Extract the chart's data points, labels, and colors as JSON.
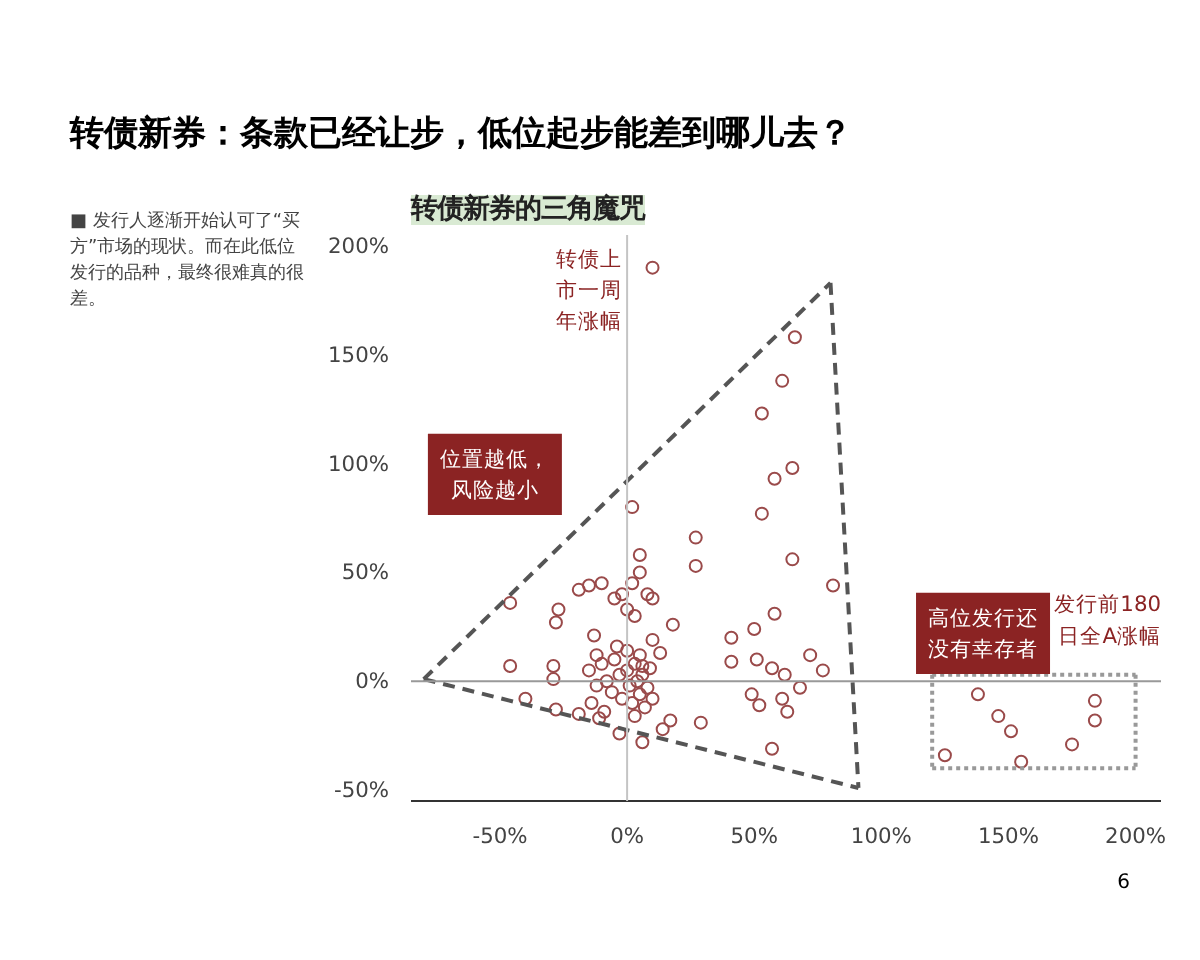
{
  "chart_data": {
    "type": "scatter",
    "title": "转债新券：条款已经让步，低位起步能差到哪儿去？",
    "subtitle": "转债新券的三角魔咒",
    "xlabel": "发行前180日全A涨幅",
    "ylabel": "转债上市一周年涨幅",
    "annotations": [
      "位置越低，风险越小",
      "高位发行还没有幸存者",
      "■ 发行人逐渐开始认可了“买方”市场的现状。而在此低位发行的品种，最终很难真的很差。",
      "6"
    ],
    "marker": "circle",
    "series": [
      {
        "color": "#9a4a4a",
        "x": [
          10,
          66,
          61,
          53,
          65,
          58,
          53,
          27,
          27,
          65,
          81,
          2,
          5,
          -46,
          -19,
          -15,
          -10,
          -27,
          -28,
          -46,
          -29,
          -29,
          -13,
          -12,
          18,
          10,
          13,
          6,
          41,
          41,
          50,
          58,
          51,
          57,
          62,
          77,
          72,
          68,
          49,
          52,
          61,
          63,
          57,
          29,
          17,
          14,
          6,
          -3,
          -19,
          -11,
          -40,
          -28,
          -15,
          -12,
          -10,
          -8,
          -6,
          -5,
          -3,
          -2,
          0,
          1,
          2,
          3,
          4,
          5,
          6,
          7,
          8,
          9,
          10,
          -14,
          -9,
          3,
          0,
          -4,
          5,
          2,
          5,
          8,
          -2,
          0,
          3,
          10,
          -5,
          138,
          146,
          151,
          125,
          155,
          175,
          184,
          184
        ],
        "values": [
          190,
          158,
          138,
          123,
          98,
          93,
          77,
          66,
          53,
          56,
          44,
          80,
          58,
          36,
          42,
          44,
          45,
          33,
          27,
          7,
          7,
          1,
          21,
          12,
          26,
          19,
          13,
          7,
          20,
          9,
          24,
          31,
          10,
          6,
          3,
          5,
          12,
          -3,
          -6,
          -11,
          -8,
          -14,
          -31,
          -19,
          -18,
          -22,
          -28,
          -24,
          -15,
          -17,
          -8,
          -13,
          5,
          -2,
          8,
          0,
          -5,
          10,
          3,
          -8,
          5,
          -2,
          -10,
          8,
          0,
          -6,
          3,
          -12,
          -3,
          6,
          -8,
          -10,
          -14,
          -16,
          14,
          16,
          12,
          45,
          50,
          40,
          40,
          33,
          30,
          38,
          38,
          -6,
          -16,
          -23,
          -34,
          -37,
          -29,
          -9,
          -18
        ]
      },
      {
        "type": "line",
        "marker": "none",
        "color": "#555555",
        "line_style": "dashed",
        "x": [
          -80,
          80
        ],
        "values": [
          1,
          183
        ]
      },
      {
        "type": "line",
        "marker": "none",
        "color": "#555555",
        "line_style": "dashed",
        "x": [
          80,
          91
        ],
        "values": [
          183,
          -49
        ]
      },
      {
        "type": "line",
        "marker": "none",
        "color": "#555555",
        "line_style": "dashed",
        "x": [
          -80,
          91
        ],
        "values": [
          1,
          -49
        ]
      },
      {
        "type": "line",
        "marker": "none",
        "color": "#999999",
        "line_style": "dotted",
        "x": [
          120,
          200
        ],
        "values": [
          3,
          3
        ]
      },
      {
        "type": "line",
        "marker": "none",
        "color": "#999999",
        "line_style": "dotted",
        "x": [
          120,
          200
        ],
        "values": [
          -40,
          -40
        ]
      },
      {
        "type": "line",
        "marker": "none",
        "color": "#999999",
        "line_style": "dotted",
        "x": [
          120,
          120
        ],
        "values": [
          3,
          -40
        ]
      },
      {
        "type": "line",
        "marker": "none",
        "color": "#999999",
        "line_style": "dotted",
        "x": [
          200,
          200
        ],
        "values": [
          3,
          -40
        ]
      }
    ],
    "ref_lines": [
      {
        "axis": "x",
        "value": 0,
        "color": "#c4c4c4"
      },
      {
        "axis": "y",
        "value": 0,
        "color": "#999999"
      }
    ],
    "xlim": [
      -85,
      210
    ],
    "ylim": [
      -55,
      205
    ],
    "xticks": [
      {
        "value": -50,
        "label": "-50%"
      },
      {
        "value": 0,
        "label": "0%"
      },
      {
        "value": 50,
        "label": "50%"
      },
      {
        "value": 100,
        "label": "100%"
      },
      {
        "value": 150,
        "label": "150%"
      },
      {
        "value": 200,
        "label": "200%"
      }
    ],
    "yticks": [
      {
        "value": -50,
        "label": "-50%"
      },
      {
        "value": 0,
        "label": "0%"
      },
      {
        "value": 50,
        "label": "50%"
      },
      {
        "value": 100,
        "label": "100%"
      },
      {
        "value": 150,
        "label": "150%"
      },
      {
        "value": 200,
        "label": "200%"
      }
    ],
    "grid": false
  }
}
